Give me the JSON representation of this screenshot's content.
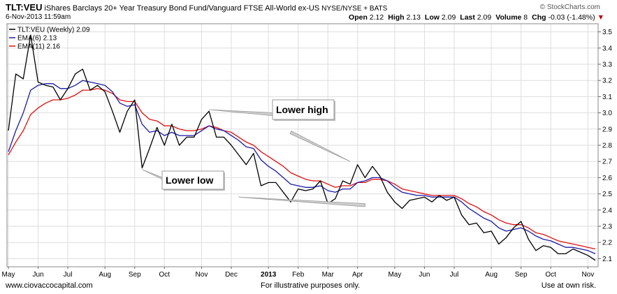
{
  "header": {
    "symbol": "TLT:VEU",
    "description": "iShares Barclays 20+ Year Treasury Bond Fund/Vanguard FTSE All-World ex-US",
    "exchange": "NYSE/NYSE + BATS",
    "date": "6-Nov-2013 11:59am",
    "source": "© StockCharts.com",
    "quote": [
      {
        "label": "Open",
        "value": "2.12"
      },
      {
        "label": "High",
        "value": "2.13"
      },
      {
        "label": "Low",
        "value": "2.09"
      },
      {
        "label": "Last",
        "value": "2.09"
      },
      {
        "label": "Volume",
        "value": "8"
      },
      {
        "label": "Chg",
        "value": "-0.03 (-1.48%)"
      }
    ]
  },
  "footer": {
    "website": "www.ciovaccocapital.com",
    "disclaimer": "For illustrative purposes only.",
    "risk": "Use at own risk."
  },
  "colors": {
    "price": "#000000",
    "ema6": "#1a1aa8",
    "ema11": "#e01010",
    "grid": "#dddddd",
    "annotation": "#999999"
  },
  "chart_data": {
    "type": "line",
    "grid": true,
    "legend_position": "top-left",
    "ylim": [
      2.05,
      3.55
    ],
    "y_ticks": [
      2.1,
      2.2,
      2.3,
      2.4,
      2.5,
      2.6,
      2.7,
      2.8,
      2.9,
      3.0,
      3.1,
      3.2,
      3.3,
      3.4,
      3.5
    ],
    "x_range": [
      0,
      79
    ],
    "x_ticks": [
      {
        "i": 0,
        "label": "May"
      },
      {
        "i": 4,
        "label": "Jun"
      },
      {
        "i": 8,
        "label": "Jul"
      },
      {
        "i": 13,
        "label": "Aug"
      },
      {
        "i": 17,
        "label": "Sep"
      },
      {
        "i": 21,
        "label": "Oct"
      },
      {
        "i": 26,
        "label": "Nov"
      },
      {
        "i": 30,
        "label": "Dec"
      },
      {
        "i": 35,
        "label": "2013"
      },
      {
        "i": 39,
        "label": "Feb"
      },
      {
        "i": 43,
        "label": "Mar"
      },
      {
        "i": 47,
        "label": "Apr"
      },
      {
        "i": 52,
        "label": "May"
      },
      {
        "i": 56,
        "label": "Jun"
      },
      {
        "i": 60,
        "label": "Jul"
      },
      {
        "i": 65,
        "label": "Aug"
      },
      {
        "i": 69,
        "label": "Sep"
      },
      {
        "i": 73,
        "label": "Oct"
      },
      {
        "i": 78,
        "label": "Nov"
      }
    ],
    "series": [
      {
        "name": "TLT:VEU (Weekly) 2.09",
        "key": "price",
        "values": [
          2.89,
          3.24,
          3.21,
          3.48,
          3.19,
          3.17,
          3.16,
          3.08,
          3.15,
          3.24,
          3.27,
          3.14,
          3.17,
          3.13,
          3.01,
          2.88,
          3.01,
          3.08,
          2.66,
          2.78,
          2.91,
          2.8,
          2.93,
          2.8,
          2.85,
          2.85,
          2.96,
          3.01,
          2.85,
          2.85,
          2.8,
          2.74,
          2.68,
          2.75,
          2.55,
          2.57,
          2.57,
          2.51,
          2.45,
          2.53,
          2.52,
          2.53,
          2.58,
          2.44,
          2.47,
          2.58,
          2.56,
          2.68,
          2.6,
          2.67,
          2.61,
          2.51,
          2.45,
          2.41,
          2.46,
          2.47,
          2.48,
          2.45,
          2.49,
          2.46,
          2.48,
          2.37,
          2.31,
          2.32,
          2.26,
          2.27,
          2.19,
          2.23,
          2.29,
          2.33,
          2.22,
          2.15,
          2.18,
          2.17,
          2.13,
          2.13,
          2.16,
          2.14,
          2.12,
          2.09
        ]
      },
      {
        "name": "EMA(6) 2.13",
        "key": "ema6",
        "values": [
          2.76,
          2.89,
          3.0,
          3.14,
          3.17,
          3.18,
          3.18,
          3.15,
          3.15,
          3.17,
          3.2,
          3.19,
          3.18,
          3.17,
          3.13,
          3.06,
          3.04,
          3.05,
          2.93,
          2.88,
          2.89,
          2.86,
          2.88,
          2.86,
          2.86,
          2.86,
          2.89,
          2.92,
          2.9,
          2.89,
          2.86,
          2.83,
          2.79,
          2.78,
          2.71,
          2.67,
          2.64,
          2.6,
          2.56,
          2.55,
          2.54,
          2.54,
          2.55,
          2.52,
          2.51,
          2.53,
          2.53,
          2.57,
          2.58,
          2.6,
          2.6,
          2.58,
          2.54,
          2.51,
          2.5,
          2.49,
          2.49,
          2.48,
          2.48,
          2.48,
          2.48,
          2.45,
          2.41,
          2.38,
          2.35,
          2.33,
          2.29,
          2.27,
          2.28,
          2.29,
          2.27,
          2.24,
          2.22,
          2.21,
          2.19,
          2.17,
          2.17,
          2.16,
          2.15,
          2.13
        ]
      },
      {
        "name": "EMA(11) 2.16",
        "key": "ema11",
        "values": [
          2.74,
          2.82,
          2.89,
          2.99,
          3.03,
          3.06,
          3.08,
          3.08,
          3.09,
          3.11,
          3.14,
          3.14,
          3.15,
          3.14,
          3.12,
          3.08,
          3.07,
          3.07,
          3.0,
          2.96,
          2.95,
          2.92,
          2.92,
          2.9,
          2.89,
          2.89,
          2.9,
          2.92,
          2.91,
          2.89,
          2.88,
          2.85,
          2.82,
          2.8,
          2.76,
          2.73,
          2.7,
          2.67,
          2.63,
          2.61,
          2.59,
          2.58,
          2.58,
          2.56,
          2.54,
          2.55,
          2.55,
          2.57,
          2.57,
          2.59,
          2.59,
          2.58,
          2.56,
          2.53,
          2.52,
          2.51,
          2.5,
          2.49,
          2.49,
          2.49,
          2.49,
          2.47,
          2.44,
          2.42,
          2.39,
          2.37,
          2.34,
          2.32,
          2.31,
          2.31,
          2.29,
          2.26,
          2.25,
          2.23,
          2.21,
          2.2,
          2.19,
          2.18,
          2.17,
          2.16
        ]
      }
    ],
    "annotations": [
      {
        "text": "Lower high",
        "lines": [
          [
            27,
            3.02,
            36,
            2.99
          ],
          [
            46,
            2.7,
            38,
            2.88
          ]
        ]
      },
      {
        "text": "Lower low",
        "lines": [
          [
            18,
            2.65,
            23,
            2.55
          ],
          [
            31,
            2.48,
            48,
            2.43
          ]
        ]
      }
    ]
  }
}
